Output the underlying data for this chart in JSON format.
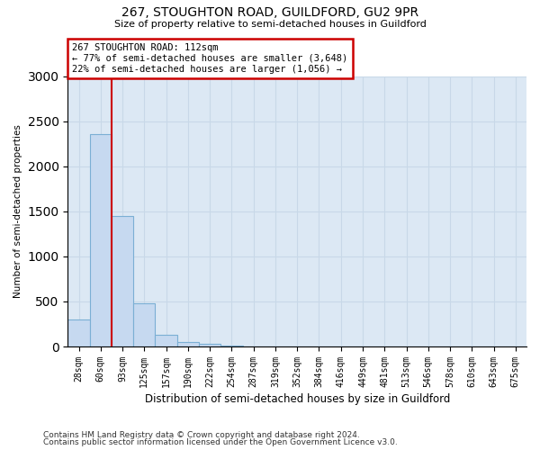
{
  "title1": "267, STOUGHTON ROAD, GUILDFORD, GU2 9PR",
  "title2": "Size of property relative to semi-detached houses in Guildford",
  "xlabel": "Distribution of semi-detached houses by size in Guildford",
  "ylabel": "Number of semi-detached properties",
  "footnote1": "Contains HM Land Registry data © Crown copyright and database right 2024.",
  "footnote2": "Contains public sector information licensed under the Open Government Licence v3.0.",
  "bar_labels": [
    "28sqm",
    "60sqm",
    "93sqm",
    "125sqm",
    "157sqm",
    "190sqm",
    "222sqm",
    "254sqm",
    "287sqm",
    "319sqm",
    "352sqm",
    "384sqm",
    "416sqm",
    "449sqm",
    "481sqm",
    "513sqm",
    "546sqm",
    "578sqm",
    "610sqm",
    "643sqm",
    "675sqm"
  ],
  "bar_values": [
    300,
    2360,
    1450,
    480,
    130,
    50,
    30,
    10,
    0,
    0,
    0,
    0,
    0,
    0,
    0,
    0,
    0,
    0,
    0,
    0,
    0
  ],
  "bar_color": "#c6d9f0",
  "bar_edge_color": "#7bafd4",
  "vline_color": "#cc0000",
  "vline_x": 1.5,
  "annotation_title": "267 STOUGHTON ROAD: 112sqm",
  "annotation_line1": "← 77% of semi-detached houses are smaller (3,648)",
  "annotation_line2": "22% of semi-detached houses are larger (1,056) →",
  "annotation_box_color": "#cc0000",
  "ylim": [
    0,
    3000
  ],
  "yticks": [
    0,
    500,
    1000,
    1500,
    2000,
    2500,
    3000
  ],
  "grid_color": "#c8d8e8",
  "bg_color": "#dce8f4"
}
